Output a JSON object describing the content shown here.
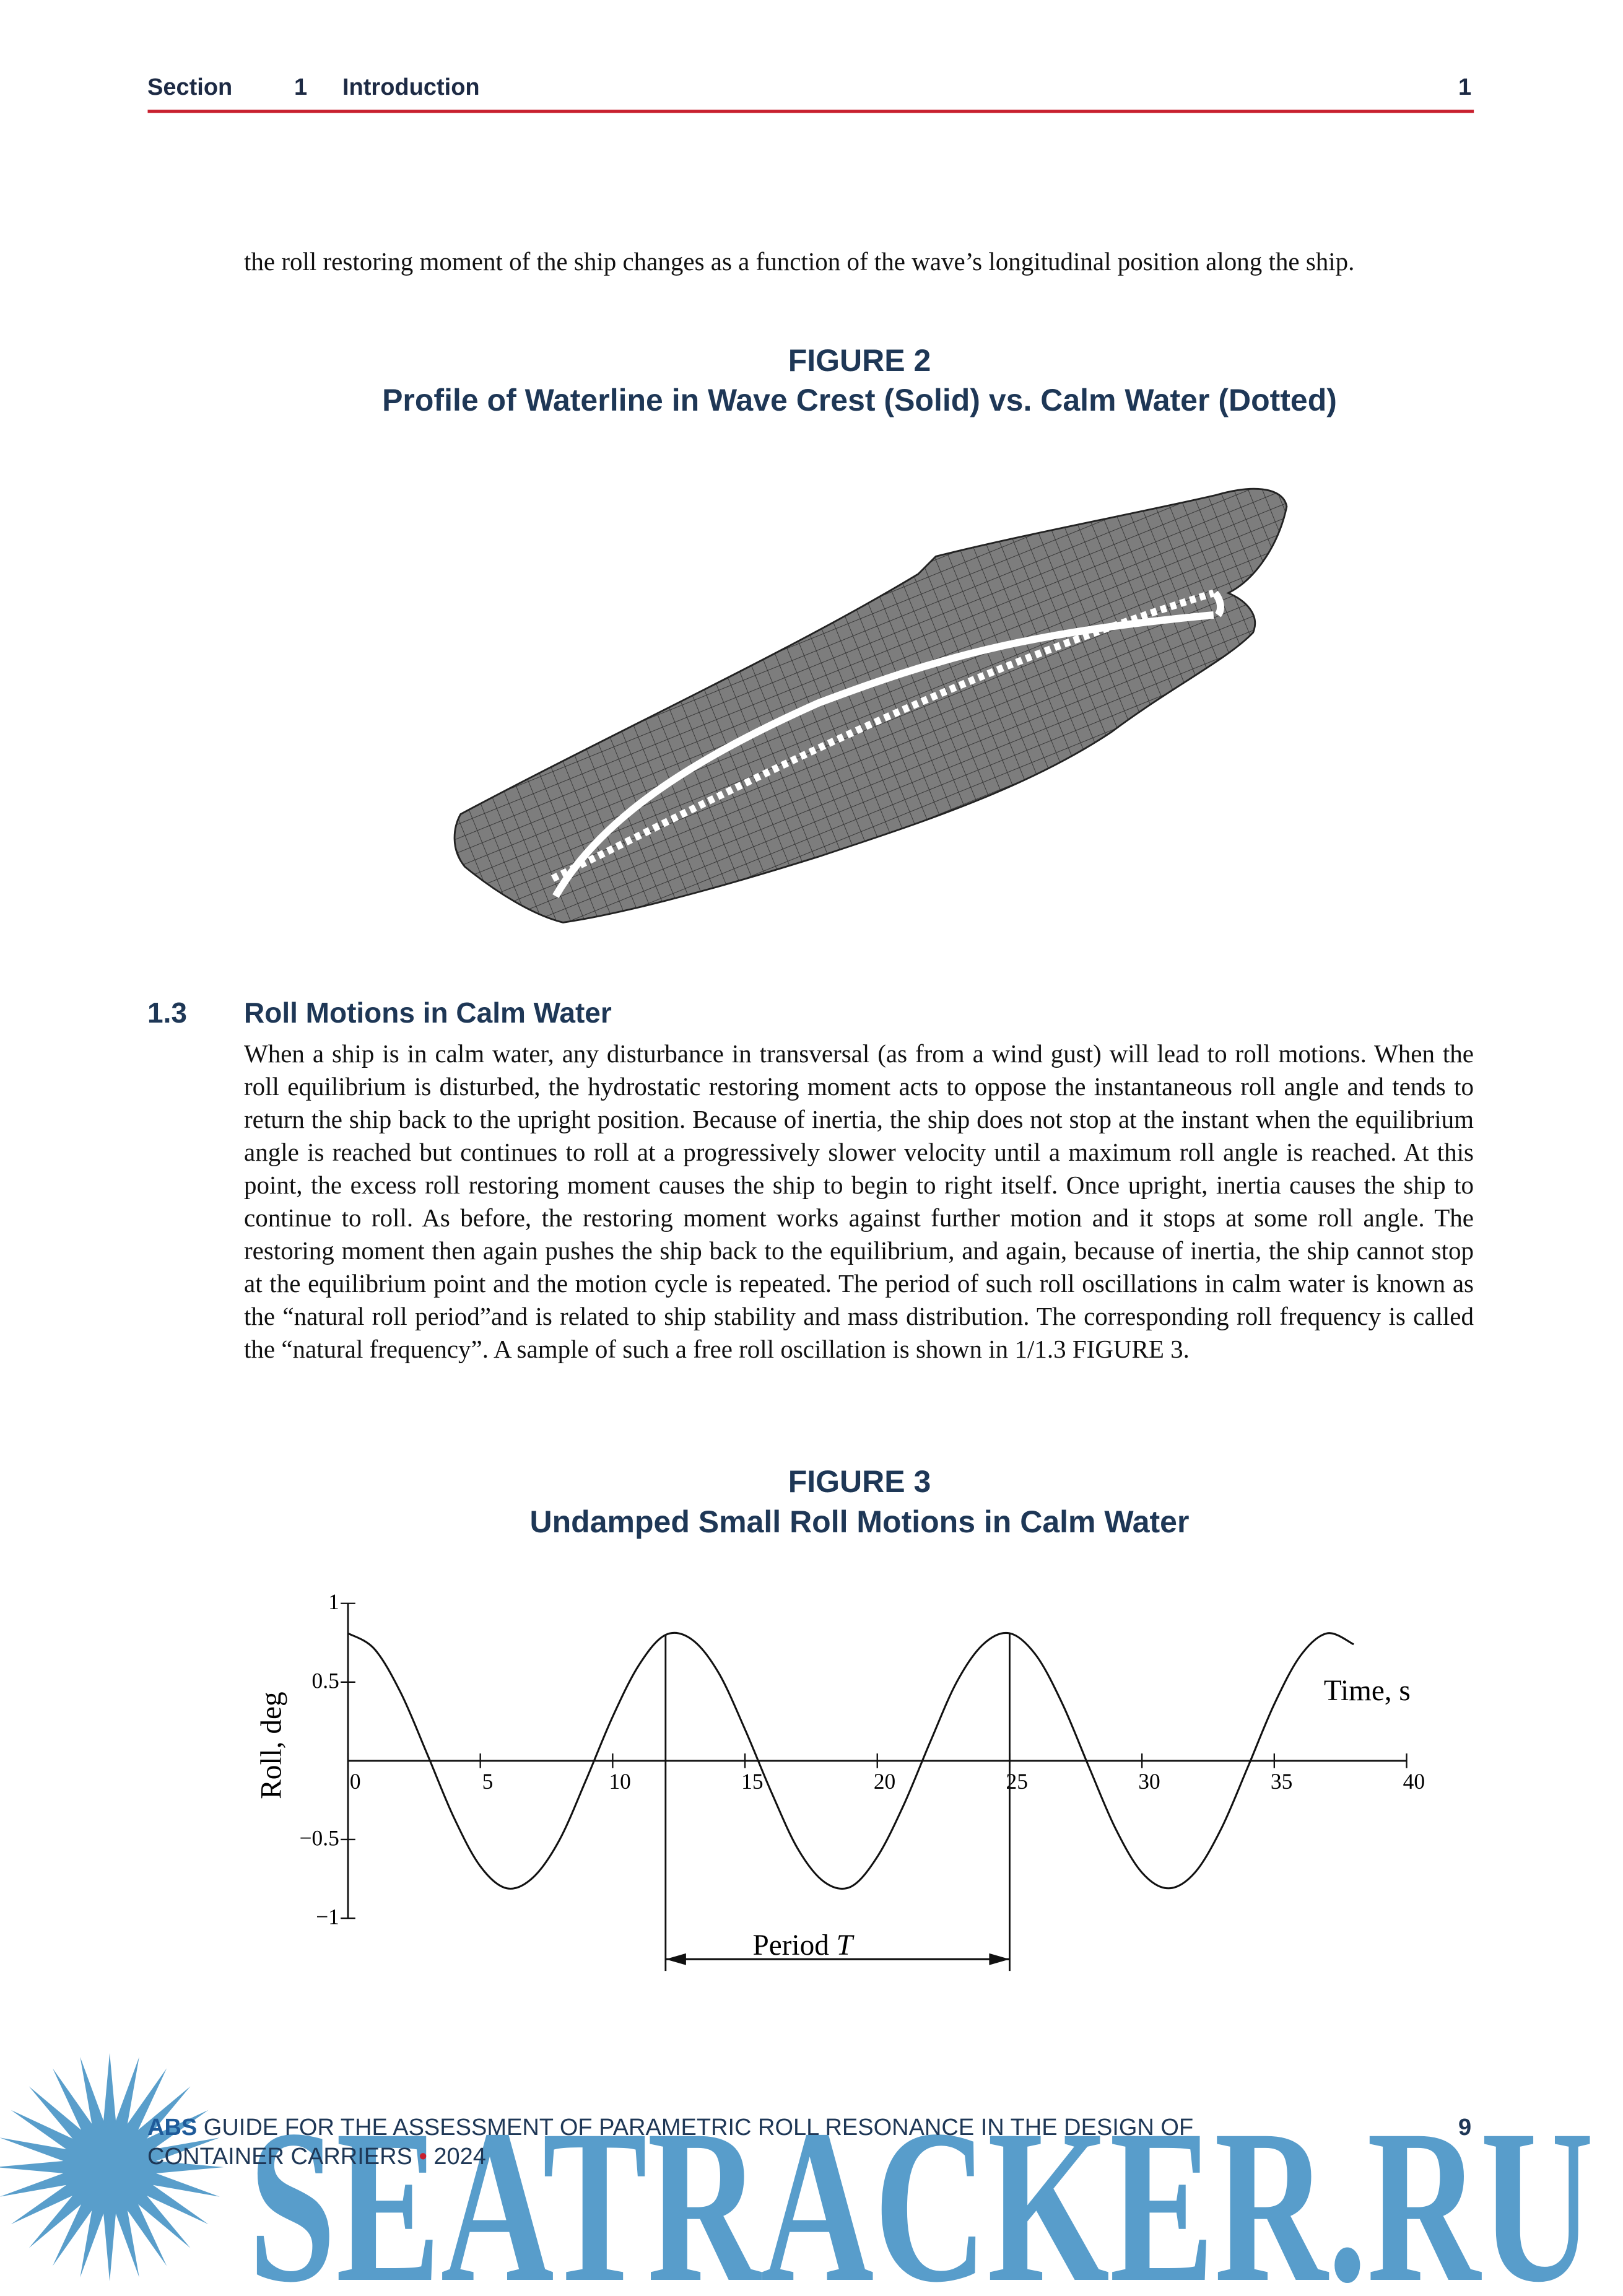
{
  "header": {
    "section_label": "Section",
    "section_number": "1",
    "section_title": "Introduction",
    "page_number": "1"
  },
  "intro_paragraph": "the roll restoring moment of the ship changes as a function of the wave’s longitudinal position along the ship.",
  "figure_2": {
    "label": "FIGURE 2",
    "caption": "Profile of Waterline in Wave Crest (Solid) vs. Calm Water (Dotted)"
  },
  "section": {
    "number": "1.3",
    "title": "Roll Motions in Calm Water",
    "paragraph": "When a ship is in calm water, any disturbance in transversal (as from a wind gust) will lead to roll motions. When the roll equilibrium is disturbed, the hydrostatic restoring moment acts to oppose the instantaneous roll angle and tends to return the ship back to the upright position. Because of inertia, the ship does not stop at the instant when the equilibrium angle is reached but continues to roll at a progressively slower velocity until a maximum roll angle is reached. At this point, the excess roll restoring moment causes the ship to begin to right itself. Once upright, inertia causes the ship to continue to roll. As before, the restoring moment works against further motion and it stops at some roll angle. The restoring moment then again pushes the ship back to the equilibrium, and again, because of inertia, the ship cannot stop at the equilibrium point and the motion cycle is repeated. The period of such roll oscillations in calm water is known as the “natural roll period”and is related to ship stability and mass distribution. The corresponding roll frequency is called the “natural frequency”. A sample of such a free roll oscillation is shown in 1/1.3 FIGURE 3."
  },
  "figure_3": {
    "label": "FIGURE 3",
    "caption": "Undamped Small Roll Motions in Calm Water",
    "chart_data": {
      "type": "line",
      "x_label": "Time, s",
      "y_label": "Roll, deg",
      "annotation": "Period",
      "annotation_symbol": "T",
      "x": [
        0,
        1,
        2,
        3,
        4,
        5,
        6,
        7,
        8,
        9,
        10,
        11,
        12,
        13,
        14,
        15,
        16,
        17,
        18,
        19,
        20,
        21,
        22,
        23,
        24,
        25,
        26,
        27,
        28,
        29,
        30,
        31,
        32,
        33,
        34,
        35,
        36,
        37,
        38
      ],
      "series": [
        {
          "color": "#111111",
          "values": [
            0.81,
            0.71,
            0.43,
            0.04,
            -0.36,
            -0.67,
            -0.81,
            -0.74,
            -0.5,
            -0.12,
            0.28,
            0.61,
            0.8,
            0.77,
            0.56,
            0.2,
            -0.2,
            -0.56,
            -0.77,
            -0.8,
            -0.61,
            -0.28,
            0.12,
            0.5,
            0.74,
            0.81,
            0.67,
            0.36,
            -0.04,
            -0.43,
            -0.71,
            -0.81,
            -0.71,
            -0.43,
            -0.04,
            0.36,
            0.67,
            0.81,
            0.74
          ]
        }
      ],
      "xlim": [
        0,
        40
      ],
      "ylim": [
        -1,
        1
      ],
      "xticks": [
        0,
        5,
        10,
        15,
        20,
        25,
        30,
        35,
        40
      ],
      "yticks": [
        1,
        0.5,
        {
          "value": -0.5,
          "label": "−0.5"
        },
        {
          "value": -1,
          "label": "−1"
        }
      ]
    }
  },
  "footer": {
    "brand": "ABS",
    "title": "GUIDE FOR THE ASSESSMENT OF PARAMETRIC ROLL RESONANCE IN THE DESIGN OF CONTAINER CARRIERS",
    "bullet": "•",
    "year": "2024",
    "page_number": "9"
  },
  "watermark": "SEATRACKER.RU"
}
